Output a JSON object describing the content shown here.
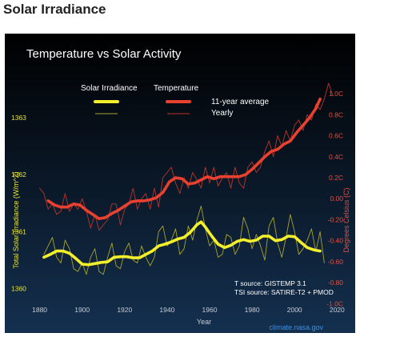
{
  "page": {
    "heading": "Solar Irradiance"
  },
  "colors": {
    "bg_top": "#000000",
    "bg_bottom": "#14304f",
    "solar": "#f4ef2c",
    "solar_yearly": "#a9a330",
    "temp": "#e8412f",
    "temp_yearly": "#b8352a",
    "left_axis": "#e7e33a",
    "right_axis": "#f04a3c",
    "text": "#ffffff",
    "bottom_axis": "#c8ccd6",
    "credit": "#3d8fe0"
  },
  "chart_data": {
    "type": "line",
    "title": "Temperature vs Solar Activity",
    "xlabel": "Year",
    "ylabel_left": "Total Solar Irradiance (W/m^2)",
    "ylabel_right": "Degrees Celsius (C)",
    "xlim": [
      1873,
      2018
    ],
    "x_ticks": [
      "1880",
      "1900",
      "1920",
      "1940",
      "1960",
      "1980",
      "2000",
      "2020"
    ],
    "x_tick_values": [
      1880,
      1900,
      1920,
      1940,
      1960,
      1980,
      2000,
      2020
    ],
    "ylim_left": [
      1359.7,
      1363.6
    ],
    "y_left_ticks": [
      "1360",
      "1361",
      "1362",
      "1363"
    ],
    "y_left_tick_values": [
      1360,
      1361,
      1362,
      1363
    ],
    "ylim_right": [
      -1.02,
      1.1
    ],
    "y_right_ticks": [
      "1.0C",
      "0.8C",
      "0.6C",
      "0.4C",
      "0.2C",
      "0.00",
      "-0.20",
      "-0.40",
      "-0.60",
      "-0.80",
      "-1.0C"
    ],
    "y_right_tick_values": [
      1.0,
      0.8,
      0.6,
      0.4,
      0.2,
      0.0,
      -0.2,
      -0.4,
      -0.6,
      -0.8,
      -1.0
    ],
    "legend": {
      "solar_header": "Solar Irradiance",
      "temp_header": "Temperature",
      "row_avg": "11-year average",
      "row_yearly": "Yearly"
    },
    "sources": [
      "T source: GISTEMP 3.1",
      "TSI source: SATIRE-T2 + PMOD"
    ],
    "credit": "climate.nasa.gov",
    "series": [
      {
        "name": "Solar Irradiance 11-year average",
        "axis": "left",
        "x": [
          1882,
          1885,
          1888,
          1891,
          1894,
          1897,
          1900,
          1903,
          1906,
          1909,
          1912,
          1915,
          1918,
          1921,
          1924,
          1927,
          1930,
          1933,
          1936,
          1939,
          1942,
          1945,
          1948,
          1951,
          1954,
          1956,
          1958,
          1961,
          1964,
          1967,
          1970,
          1973,
          1976,
          1979,
          1982,
          1985,
          1988,
          1991,
          1994,
          1997,
          2000,
          2003,
          2006,
          2009,
          2012
        ],
        "values": [
          1360.55,
          1360.6,
          1360.66,
          1360.66,
          1360.62,
          1360.53,
          1360.43,
          1360.42,
          1360.44,
          1360.46,
          1360.47,
          1360.55,
          1360.56,
          1360.56,
          1360.54,
          1360.54,
          1360.6,
          1360.66,
          1360.75,
          1360.78,
          1360.82,
          1360.87,
          1360.9,
          1360.99,
          1361.12,
          1361.17,
          1361.08,
          1360.92,
          1360.78,
          1360.72,
          1360.76,
          1360.83,
          1360.86,
          1360.83,
          1360.85,
          1360.92,
          1360.92,
          1360.84,
          1360.86,
          1360.92,
          1360.91,
          1360.81,
          1360.72,
          1360.68,
          1360.66
        ]
      },
      {
        "name": "Solar Irradiance yearly",
        "axis": "left",
        "x": [
          1882,
          1884,
          1886,
          1888,
          1890,
          1892,
          1894,
          1896,
          1898,
          1900,
          1902,
          1904,
          1906,
          1908,
          1910,
          1912,
          1914,
          1916,
          1918,
          1920,
          1922,
          1924,
          1926,
          1928,
          1930,
          1932,
          1934,
          1936,
          1938,
          1940,
          1942,
          1944,
          1946,
          1948,
          1950,
          1952,
          1954,
          1956,
          1958,
          1960,
          1962,
          1964,
          1966,
          1968,
          1970,
          1972,
          1974,
          1976,
          1978,
          1980,
          1982,
          1984,
          1986,
          1988,
          1990,
          1992,
          1994,
          1996,
          1998,
          2000,
          2002,
          2004,
          2006,
          2008,
          2010,
          2012,
          2014
        ],
        "values": [
          1360.6,
          1360.75,
          1360.9,
          1360.55,
          1360.45,
          1360.85,
          1360.7,
          1360.35,
          1360.3,
          1360.45,
          1360.25,
          1360.55,
          1360.7,
          1360.3,
          1360.25,
          1360.55,
          1360.8,
          1360.4,
          1360.35,
          1360.65,
          1360.8,
          1360.5,
          1360.45,
          1360.75,
          1360.55,
          1360.4,
          1360.55,
          1361.0,
          1361.1,
          1360.75,
          1360.85,
          1361.05,
          1360.6,
          1360.7,
          1361.1,
          1360.85,
          1361.2,
          1361.45,
          1361.05,
          1360.75,
          1360.85,
          1360.55,
          1360.6,
          1360.95,
          1360.9,
          1360.6,
          1360.75,
          1361.25,
          1361.05,
          1360.7,
          1360.95,
          1360.75,
          1360.5,
          1361.1,
          1361.25,
          1360.8,
          1360.55,
          1360.9,
          1361.3,
          1361.0,
          1360.6,
          1360.7,
          1360.85,
          1361.05,
          1360.65,
          1361.0,
          1360.45
        ]
      },
      {
        "name": "Temperature 11-year average",
        "axis": "right",
        "x": [
          1884,
          1887,
          1890,
          1893,
          1896,
          1899,
          1902,
          1905,
          1908,
          1911,
          1914,
          1917,
          1920,
          1923,
          1926,
          1929,
          1932,
          1935,
          1938,
          1941,
          1944,
          1947,
          1950,
          1953,
          1956,
          1959,
          1962,
          1965,
          1968,
          1971,
          1974,
          1977,
          1980,
          1983,
          1986,
          1989,
          1992,
          1995,
          1998,
          2001,
          2004,
          2007,
          2010,
          2012
        ],
        "values": [
          -0.02,
          -0.06,
          -0.08,
          -0.08,
          -0.05,
          -0.06,
          -0.11,
          -0.15,
          -0.19,
          -0.18,
          -0.14,
          -0.11,
          -0.07,
          -0.03,
          -0.02,
          -0.02,
          -0.01,
          0.01,
          0.06,
          0.16,
          0.2,
          0.19,
          0.14,
          0.15,
          0.18,
          0.21,
          0.19,
          0.21,
          0.21,
          0.21,
          0.21,
          0.23,
          0.28,
          0.34,
          0.4,
          0.45,
          0.47,
          0.52,
          0.55,
          0.63,
          0.7,
          0.77,
          0.86,
          0.95
        ]
      },
      {
        "name": "Temperature yearly",
        "axis": "right",
        "x": [
          1880,
          1882,
          1884,
          1886,
          1888,
          1890,
          1892,
          1894,
          1896,
          1898,
          1900,
          1902,
          1904,
          1906,
          1908,
          1910,
          1912,
          1914,
          1916,
          1918,
          1920,
          1922,
          1924,
          1926,
          1928,
          1930,
          1932,
          1934,
          1936,
          1938,
          1940,
          1942,
          1944,
          1946,
          1948,
          1950,
          1952,
          1954,
          1956,
          1958,
          1960,
          1962,
          1964,
          1966,
          1968,
          1970,
          1972,
          1974,
          1976,
          1978,
          1980,
          1982,
          1984,
          1986,
          1988,
          1990,
          1992,
          1994,
          1996,
          1998,
          2000,
          2002,
          2004,
          2006,
          2008,
          2010,
          2012,
          2014,
          2016,
          2018
        ],
        "values": [
          0.1,
          0.05,
          -0.1,
          -0.05,
          -0.15,
          -0.12,
          0.05,
          -0.12,
          -0.05,
          -0.1,
          0.0,
          -0.12,
          -0.28,
          -0.15,
          -0.3,
          -0.25,
          -0.2,
          -0.05,
          -0.05,
          -0.25,
          -0.1,
          -0.05,
          0.1,
          -0.1,
          0.0,
          0.05,
          -0.1,
          0.1,
          -0.08,
          0.2,
          0.25,
          0.3,
          0.15,
          0.05,
          0.2,
          0.1,
          0.25,
          0.18,
          0.1,
          0.3,
          0.15,
          0.3,
          0.12,
          0.2,
          0.25,
          0.1,
          0.3,
          0.15,
          0.1,
          0.3,
          0.35,
          0.25,
          0.3,
          0.45,
          0.55,
          0.4,
          0.6,
          0.5,
          0.65,
          0.55,
          0.7,
          0.75,
          0.65,
          0.8,
          0.75,
          0.9,
          0.85,
          0.95,
          1.1,
          0.98
        ]
      }
    ]
  }
}
